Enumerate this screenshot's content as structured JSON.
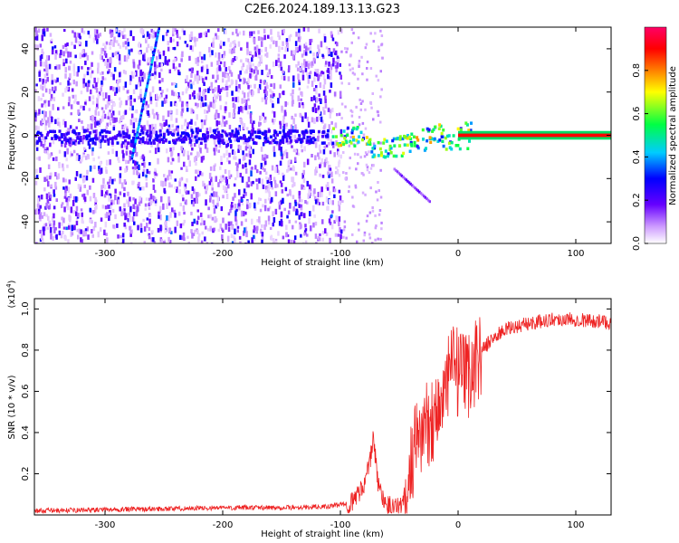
{
  "title": "C2E6.2024.189.13.13.G23",
  "chart_data": [
    {
      "type": "heatmap",
      "xlabel": "Height of straight line (km)",
      "ylabel": "Frequency (Hz)",
      "xlim": [
        -360,
        130
      ],
      "ylim": [
        -50,
        50
      ],
      "xticks": [
        -300,
        -200,
        -100,
        0,
        100
      ],
      "yticks": [
        -40,
        -20,
        0,
        20,
        40
      ],
      "colorbar": {
        "label": "Normalized spectral amplitude",
        "range": [
          0,
          1
        ],
        "ticks": [
          "0.0",
          "0.2",
          "0.4",
          "0.6",
          "0.8"
        ],
        "colors": [
          "#ffffff",
          "#9933ff",
          "#3300ff",
          "#00ccff",
          "#00ff00",
          "#ffff00",
          "#ff0000",
          "#ff0099"
        ]
      },
      "features": [
        {
          "name": "noise-region",
          "x_range": [
            -360,
            -100
          ],
          "y_range": [
            -50,
            50
          ],
          "level": 0.15
        },
        {
          "name": "carrier-trail",
          "x_range": [
            -360,
            10
          ],
          "y_center": 0,
          "level": 0.45
        },
        {
          "name": "carrier-line",
          "x_range": [
            0,
            130
          ],
          "y_center": 0,
          "level": 1.0
        },
        {
          "name": "diagonal-streak",
          "points": [
            [
              -278,
              -10
            ],
            [
              -255,
              50
            ]
          ],
          "level": 0.3
        }
      ]
    },
    {
      "type": "line",
      "xlabel": "Height of straight line (km)",
      "ylabel": "SNR (10 * v/v)",
      "y_multiplier": "(x10",
      "y_multiplier_exp": "4",
      "y_multiplier_close": ")",
      "xlim": [
        -360,
        130
      ],
      "ylim": [
        0,
        1.05
      ],
      "xticks": [
        -300,
        -200,
        -100,
        0,
        100
      ],
      "yticks": [
        0.2,
        0.4,
        0.6,
        0.8,
        1.0
      ],
      "ytick_labels": [
        "0.2",
        "0.4",
        "0.6",
        "0.8",
        "1.0"
      ],
      "line_color": "#ee2222",
      "series": [
        {
          "x": [
            -360,
            -300,
            -250,
            -200,
            -150,
            -110,
            -90,
            -80,
            -75,
            -72,
            -68,
            -62,
            -55,
            -48,
            -42,
            -38,
            -32,
            -25,
            -18,
            -10,
            -5,
            0,
            5,
            12,
            20,
            30,
            40,
            60,
            80,
            100,
            120,
            130
          ],
          "y": [
            0.02,
            0.025,
            0.03,
            0.035,
            0.035,
            0.04,
            0.06,
            0.15,
            0.25,
            0.38,
            0.15,
            0.06,
            0.04,
            0.05,
            0.15,
            0.3,
            0.4,
            0.45,
            0.5,
            0.6,
            0.75,
            0.68,
            0.65,
            0.72,
            0.8,
            0.86,
            0.9,
            0.93,
            0.95,
            0.95,
            0.94,
            0.93
          ]
        }
      ]
    }
  ]
}
